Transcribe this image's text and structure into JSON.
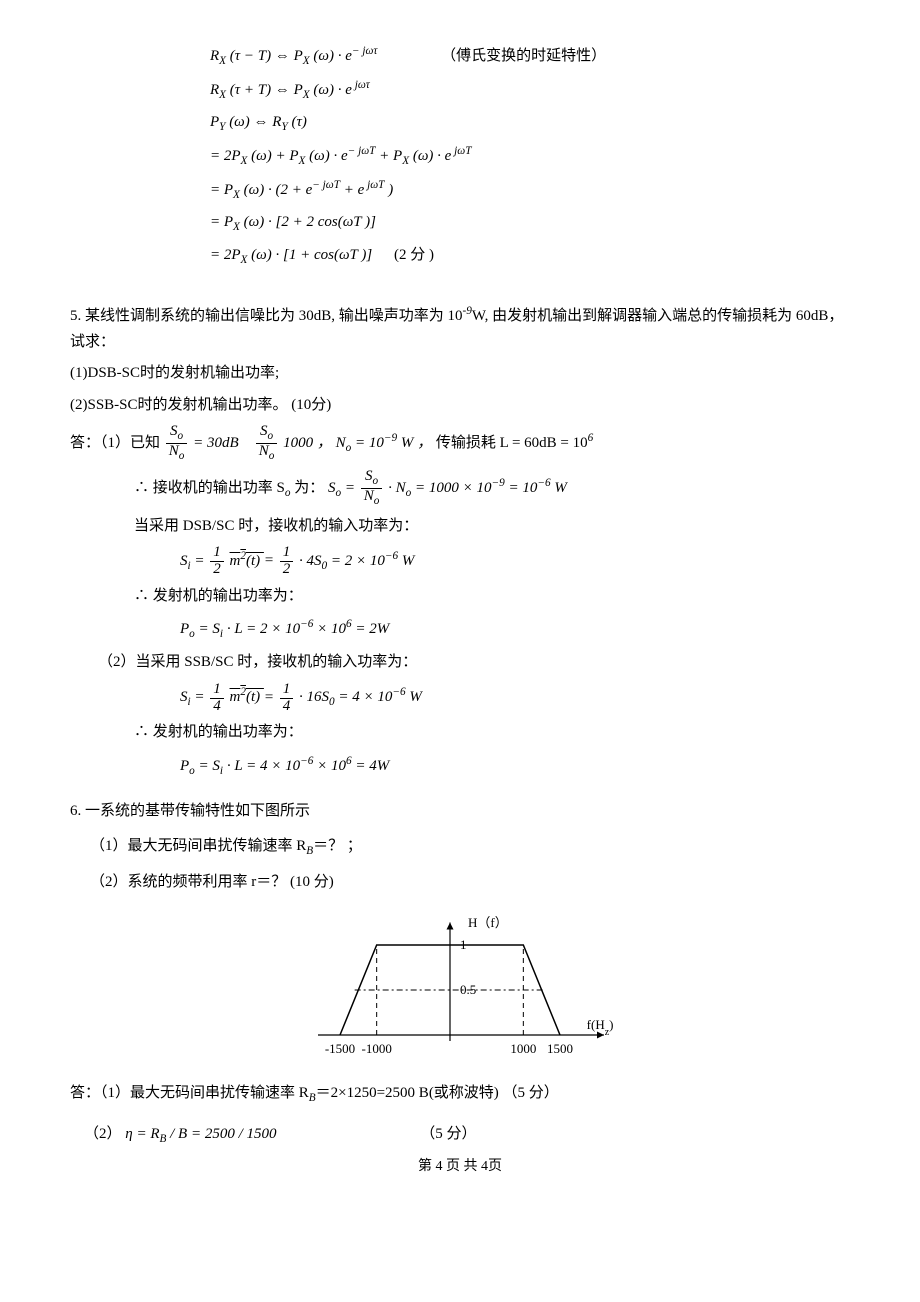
{
  "derivation": {
    "lines": [
      "R<sub>X</sub> (τ − T) ⇔  P<sub>X</sub> (ω) · e<sup>− jωτ</sup>",
      "R<sub>X</sub> (τ + T) ⇔  P<sub>X</sub> (ω) · e<sup> jωτ</sup>",
      "P<sub>Y</sub> (ω) ⇔  R<sub>Y</sub> (τ)",
      "= 2P<sub>X</sub> (ω) + P<sub>X</sub> (ω) · e<sup>− jωT</sup> + P<sub>X</sub> (ω) · e<sup> jωT</sup>",
      "= P<sub>X</sub> (ω) · (2 + e<sup>− jωT</sup> + e<sup> jωT</sup> )",
      "= P<sub>X</sub> (ω) · [2 + 2 cos(ωT )]",
      "= 2P<sub>X</sub> (ω) · [1 + cos(ωT )]"
    ],
    "note": "（傅氏变换的时延特性）",
    "points": "(2 分   )"
  },
  "q5": {
    "stem": "5. 某线性调制系统的输出信噪比为 30dB, 输出噪声功率为 10<sup>-9</sup>W, 由发射机输出到解调器输入端总的传输损耗为 60dB，试求：",
    "sub1": "(1)DSB-SC时的发射机输出功率;",
    "sub2": "(2)SSB-SC时的发射机输出功率。  (10分)",
    "ans_label": "答：（1）已知",
    "snr_db": "= 30dB",
    "snr_lin": "1000 ，",
    "No": "N<sub>o</sub> = 10<sup>−9</sup> W ，",
    "loss": "传输损耗 L = 60dB = 10<sup>6</sup>",
    "so_label": "∴ 接收机的输出功率 S<sub>o</sub> 为：",
    "so_expr_tail": "· N<sub>o</sub> = 1000 × 10<sup>−9</sup> = 10<sup>−6</sup> W",
    "dsb_label": "当采用 DSB/SC 时，接收机的输入功率为：",
    "si_dsb_tail": "· 4S<sub>0</sub> = 2 × 10<sup>−6</sup> W",
    "po_label": "∴ 发射机的输出功率为：",
    "po_dsb": "P<sub>o</sub> = S<sub>i</sub> · L = 2 × 10<sup>−6</sup> × 10<sup>6</sup> = 2W",
    "ssb_head": "（2）当采用 SSB/SC 时，接收机的输入功率为：",
    "si_ssb_tail": "· 16S<sub>0</sub> = 4 × 10<sup>−6</sup> W",
    "po_ssb": "P<sub>o</sub> = S<sub>i</sub> · L = 4 × 10<sup>−6</sup> × 10<sup>6</sup> = 4W"
  },
  "q6": {
    "stem": "6.  一系统的基带传输特性如下图所示",
    "sub1": "（1）最大无码间串扰传输速率 R<sub>B</sub>＝？ ；",
    "sub2": "（2）系统的频带利用率 r＝？ (10 分)",
    "ans1": "答：（1）最大无码间串扰传输速率 R<sub>B</sub>＝2×1250=2500  B(或称波特)   （5 分）",
    "ans2_label": "（2）",
    "ans2_formula": "η = R<sub>B</sub> / B = 2500 / 1500",
    "ans2_pts": "（5 分）",
    "chart": {
      "type": "line",
      "xlabel": "f(H<sub>z</sub>)",
      "ylabel": "H（f）",
      "xticks": [
        "-1500",
        "-1000",
        "1000",
        "1500"
      ],
      "yticks": [
        "1",
        "0.5"
      ],
      "x_vals": [
        -1500,
        -1000,
        1000,
        1500
      ],
      "y_vals": [
        0,
        1,
        1,
        0
      ],
      "dash_x": [
        -1000,
        1000
      ],
      "dash_y": 0.5,
      "line_color": "#000000",
      "dash_color": "#000000",
      "background_color": "#ffffff",
      "axis_color": "#000000",
      "font_size": 13
    }
  },
  "footer": "第 4 页 共 4页"
}
